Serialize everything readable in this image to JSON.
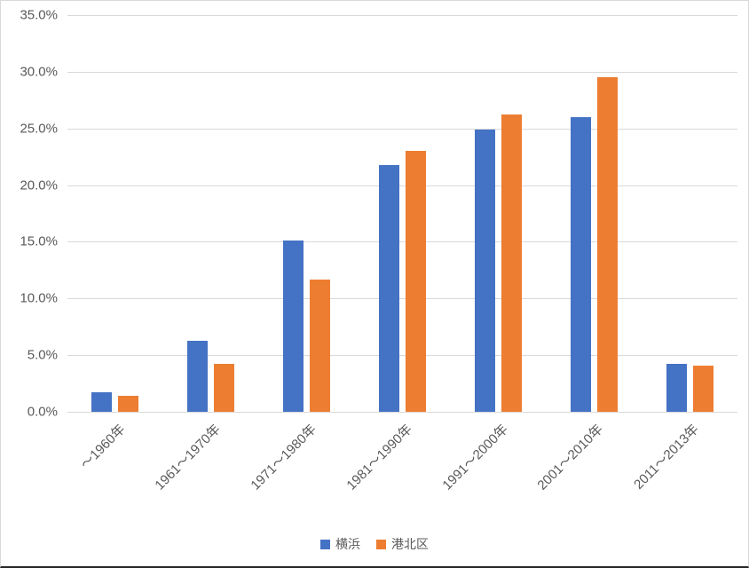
{
  "chart_data": {
    "type": "bar",
    "title": "",
    "xlabel": "",
    "ylabel": "",
    "categories": [
      "～1960年",
      "1961～1970年",
      "1971～1980年",
      "1981～1990年",
      "1991～2000年",
      "2001～2010年",
      "2011～2013年"
    ],
    "series": [
      {
        "name": "横浜",
        "color": "#4472C4",
        "values": [
          1.7,
          6.3,
          15.1,
          21.8,
          24.9,
          26.0,
          4.2
        ]
      },
      {
        "name": "港北区",
        "color": "#ED7D31",
        "values": [
          1.4,
          4.2,
          11.7,
          23.0,
          26.2,
          29.5,
          4.1
        ]
      }
    ],
    "ylim": [
      0,
      35
    ],
    "ytick_step": 5,
    "ytick_labels": [
      "0.0%",
      "5.0%",
      "10.0%",
      "15.0%",
      "20.0%",
      "25.0%",
      "30.0%",
      "35.0%"
    ],
    "grid": true,
    "legend_position": "bottom"
  },
  "colors": {
    "axis_text": "#595959",
    "gridline": "#d9d9d9",
    "background": "#ffffff",
    "border": "#d9d9d9"
  }
}
